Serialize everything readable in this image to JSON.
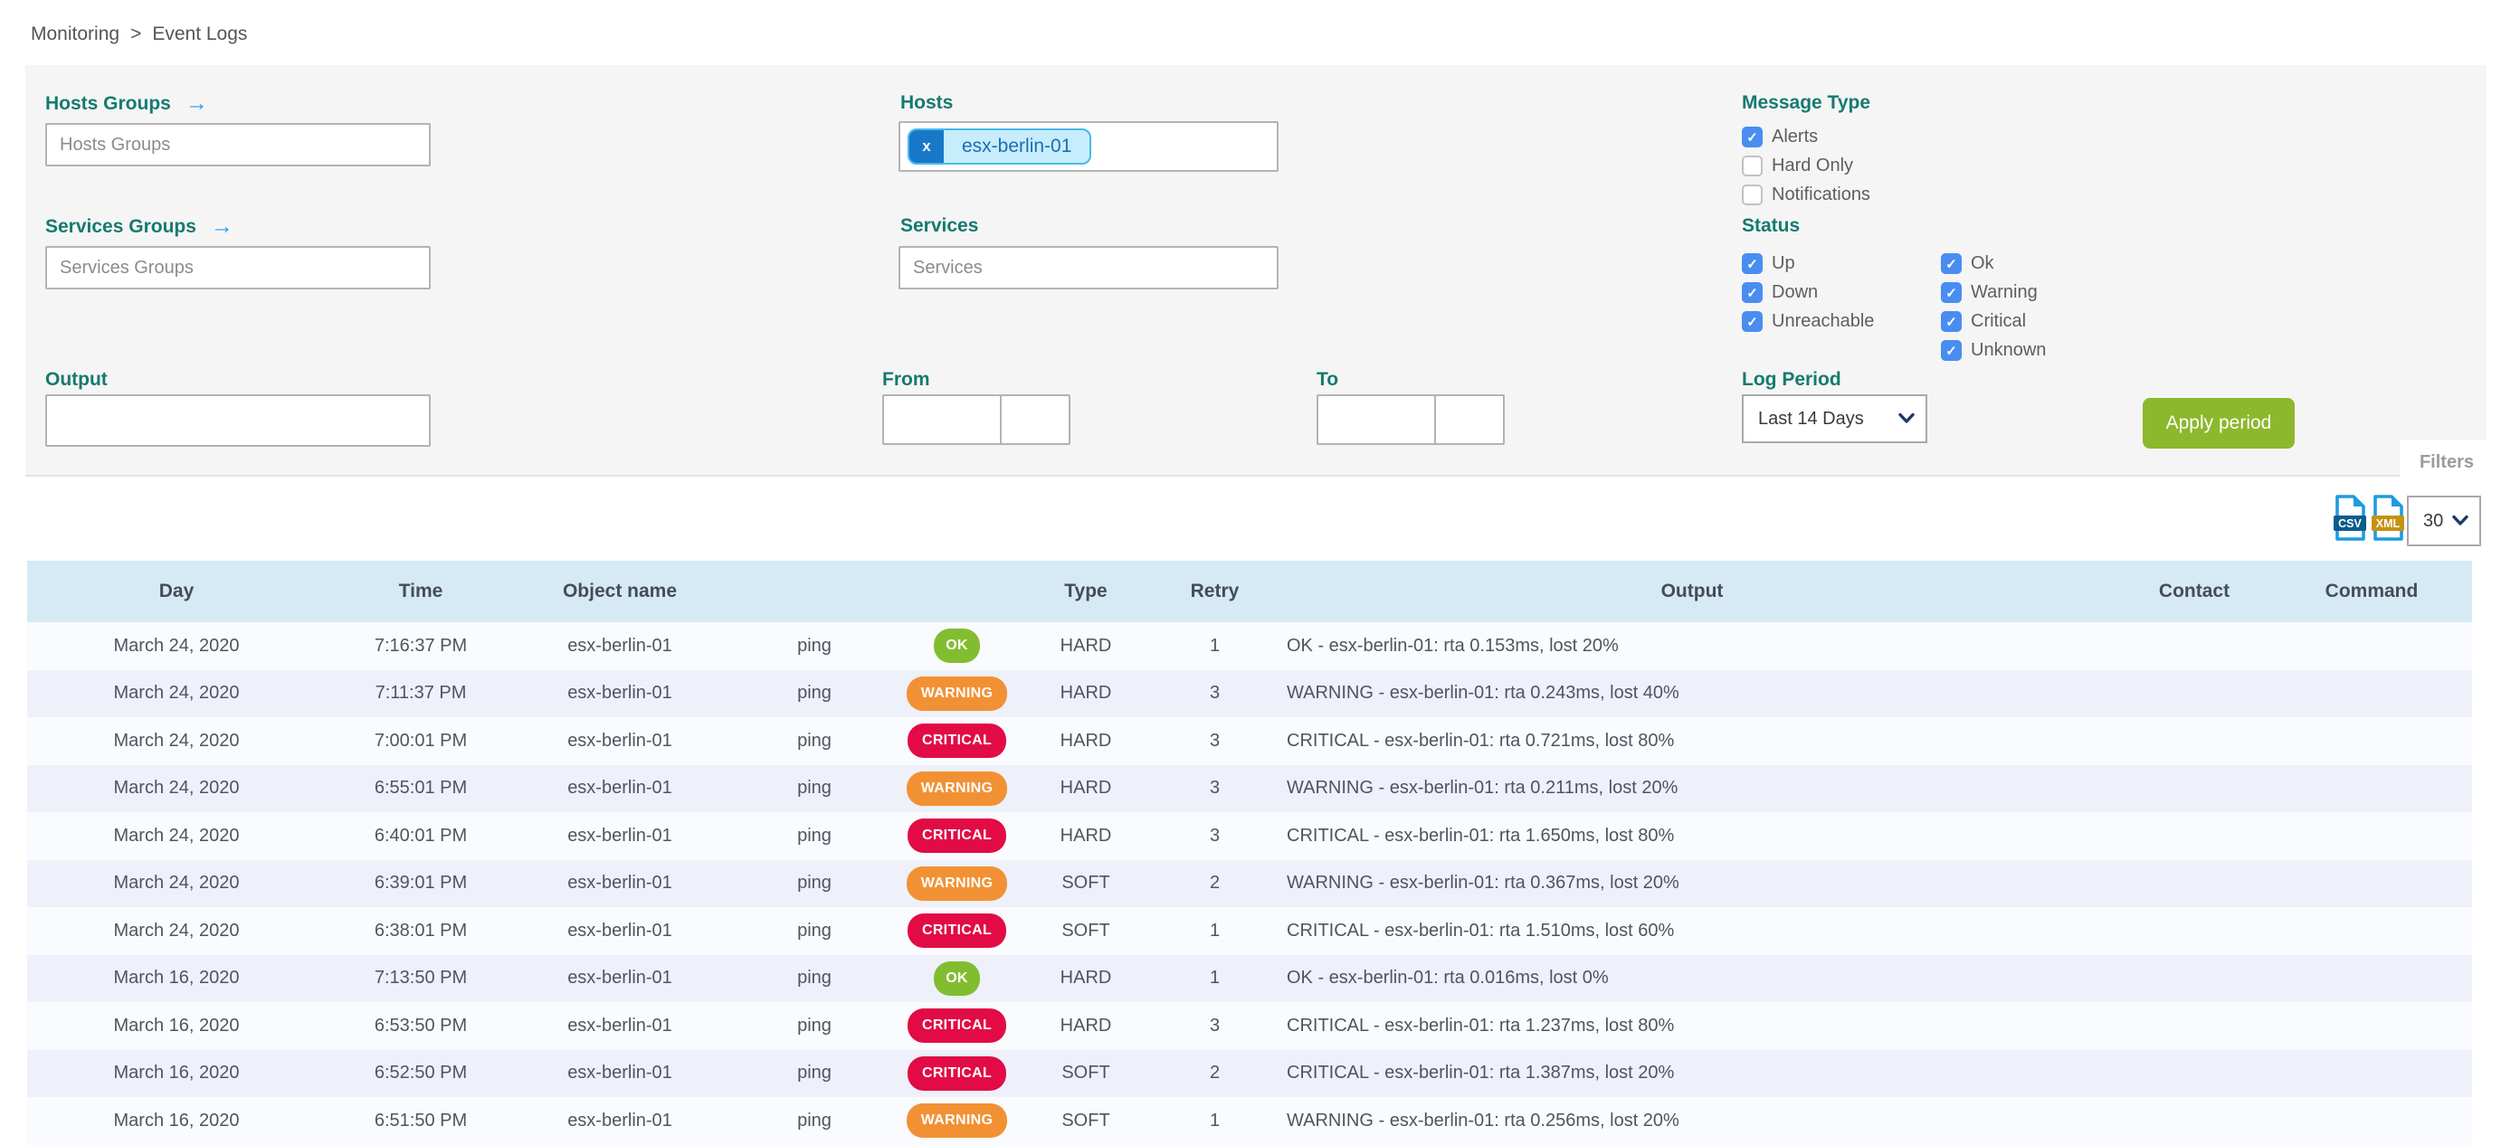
{
  "breadcrumb": {
    "items": [
      "Monitoring",
      "Event Logs"
    ],
    "separator": ">"
  },
  "filter_panel": {
    "hosts_groups": {
      "label": "Hosts Groups",
      "placeholder": "Hosts Groups"
    },
    "services_groups": {
      "label": "Services Groups",
      "placeholder": "Services Groups"
    },
    "output": {
      "label": "Output",
      "value": ""
    },
    "hosts": {
      "label": "Hosts",
      "selected_chip": "esx-berlin-01",
      "chip_remove": "x"
    },
    "services": {
      "label": "Services",
      "placeholder": "Services"
    },
    "from": {
      "label": "From",
      "date_value": "",
      "time_value": ""
    },
    "to": {
      "label": "To",
      "date_value": "",
      "time_value": ""
    },
    "message_type": {
      "label": "Message Type",
      "options": [
        {
          "label": "Alerts",
          "checked": true
        },
        {
          "label": "Hard Only",
          "checked": false
        },
        {
          "label": "Notifications",
          "checked": false
        }
      ]
    },
    "status": {
      "label": "Status",
      "host_options": [
        {
          "label": "Up",
          "checked": true
        },
        {
          "label": "Down",
          "checked": true
        },
        {
          "label": "Unreachable",
          "checked": true
        }
      ],
      "service_options": [
        {
          "label": "Ok",
          "checked": true
        },
        {
          "label": "Warning",
          "checked": true
        },
        {
          "label": "Critical",
          "checked": true
        },
        {
          "label": "Unknown",
          "checked": true
        }
      ]
    },
    "log_period": {
      "label": "Log Period",
      "selected": "Last 14 Days"
    },
    "apply_button_label": "Apply period",
    "filters_tab_label": "Filters"
  },
  "toolbar": {
    "csv_label": "CSV",
    "xml_label": "XML",
    "page_size": "30"
  },
  "table": {
    "columns": [
      "Day",
      "Time",
      "Object name",
      "",
      "",
      "Type",
      "Retry",
      "Output",
      "Contact",
      "Command"
    ],
    "rows": [
      {
        "day": "March 24, 2020",
        "time": "7:16:37 PM",
        "object_name": "esx-berlin-01",
        "service": "ping",
        "status": "OK",
        "type": "HARD",
        "retry": "1",
        "output": "OK - esx-berlin-01: rta 0.153ms, lost 20%",
        "contact": "",
        "command": ""
      },
      {
        "day": "March 24, 2020",
        "time": "7:11:37 PM",
        "object_name": "esx-berlin-01",
        "service": "ping",
        "status": "WARNING",
        "type": "HARD",
        "retry": "3",
        "output": "WARNING - esx-berlin-01: rta 0.243ms, lost 40%",
        "contact": "",
        "command": ""
      },
      {
        "day": "March 24, 2020",
        "time": "7:00:01 PM",
        "object_name": "esx-berlin-01",
        "service": "ping",
        "status": "CRITICAL",
        "type": "HARD",
        "retry": "3",
        "output": "CRITICAL - esx-berlin-01: rta 0.721ms, lost 80%",
        "contact": "",
        "command": ""
      },
      {
        "day": "March 24, 2020",
        "time": "6:55:01 PM",
        "object_name": "esx-berlin-01",
        "service": "ping",
        "status": "WARNING",
        "type": "HARD",
        "retry": "3",
        "output": "WARNING - esx-berlin-01: rta 0.211ms, lost 20%",
        "contact": "",
        "command": ""
      },
      {
        "day": "March 24, 2020",
        "time": "6:40:01 PM",
        "object_name": "esx-berlin-01",
        "service": "ping",
        "status": "CRITICAL",
        "type": "HARD",
        "retry": "3",
        "output": "CRITICAL - esx-berlin-01: rta 1.650ms, lost 80%",
        "contact": "",
        "command": ""
      },
      {
        "day": "March 24, 2020",
        "time": "6:39:01 PM",
        "object_name": "esx-berlin-01",
        "service": "ping",
        "status": "WARNING",
        "type": "SOFT",
        "retry": "2",
        "output": "WARNING - esx-berlin-01: rta 0.367ms, lost 20%",
        "contact": "",
        "command": ""
      },
      {
        "day": "March 24, 2020",
        "time": "6:38:01 PM",
        "object_name": "esx-berlin-01",
        "service": "ping",
        "status": "CRITICAL",
        "type": "SOFT",
        "retry": "1",
        "output": "CRITICAL - esx-berlin-01: rta 1.510ms, lost 60%",
        "contact": "",
        "command": ""
      },
      {
        "day": "March 16, 2020",
        "time": "7:13:50 PM",
        "object_name": "esx-berlin-01",
        "service": "ping",
        "status": "OK",
        "type": "HARD",
        "retry": "1",
        "output": "OK - esx-berlin-01: rta 0.016ms, lost 0%",
        "contact": "",
        "command": ""
      },
      {
        "day": "March 16, 2020",
        "time": "6:53:50 PM",
        "object_name": "esx-berlin-01",
        "service": "ping",
        "status": "CRITICAL",
        "type": "HARD",
        "retry": "3",
        "output": "CRITICAL - esx-berlin-01: rta 1.237ms, lost 80%",
        "contact": "",
        "command": ""
      },
      {
        "day": "March 16, 2020",
        "time": "6:52:50 PM",
        "object_name": "esx-berlin-01",
        "service": "ping",
        "status": "CRITICAL",
        "type": "SOFT",
        "retry": "2",
        "output": "CRITICAL - esx-berlin-01: rta 1.387ms, lost 20%",
        "contact": "",
        "command": ""
      },
      {
        "day": "March 16, 2020",
        "time": "6:51:50 PM",
        "object_name": "esx-berlin-01",
        "service": "ping",
        "status": "WARNING",
        "type": "SOFT",
        "retry": "1",
        "output": "WARNING - esx-berlin-01: rta 0.256ms, lost 20%",
        "contact": "",
        "command": ""
      }
    ]
  },
  "colors": {
    "accent_teal": "#157a70",
    "checkbox_blue": "#4a8df0",
    "ok_badge": "#82bd30",
    "warning_badge": "#f29134",
    "critical_badge": "#e20b45",
    "apply_button_green": "#8cb82d",
    "table_header_bg": "#d5eaf4",
    "chip_blue": "#1878c8"
  }
}
